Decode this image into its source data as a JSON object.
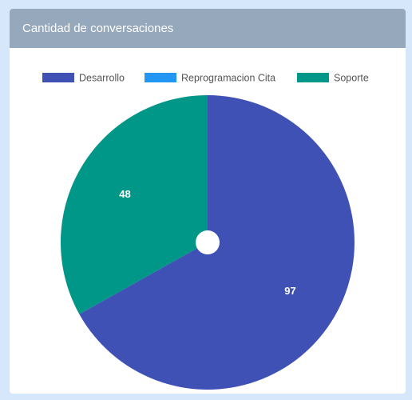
{
  "card": {
    "title": "Cantidad de conversaciones"
  },
  "colors": {
    "page_background": "#d6e7fb",
    "header_background": "#95a8bc",
    "Desarrollo": "#3f51b5",
    "Reprogramacion Cita": "#2196f3",
    "Soporte": "#009688"
  },
  "chart_data": {
    "type": "pie",
    "title": "Cantidad de conversaciones",
    "categories": [
      "Desarrollo",
      "Reprogramacion Cita",
      "Soporte"
    ],
    "values": [
      97,
      0,
      48
    ],
    "data_labels": [
      "97",
      "",
      "48"
    ],
    "legend_position": "top-center",
    "start_angle": "top, clockwise"
  }
}
